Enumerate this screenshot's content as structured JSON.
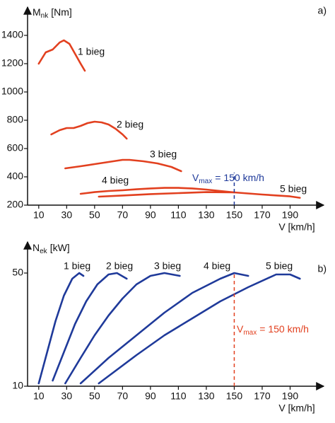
{
  "chart_data": [
    {
      "type": "line",
      "panel_label": "a)",
      "y_label_symbol": "M",
      "y_label_subscript": "nk",
      "y_label_unit": "[Nm]",
      "x_label": "V [km/h]",
      "xlim": [
        2,
        210
      ],
      "ylim": [
        200,
        1580
      ],
      "xticks": [
        10,
        30,
        50,
        70,
        90,
        110,
        130,
        150,
        170,
        190
      ],
      "yticks": [
        200,
        400,
        600,
        800,
        1000,
        1200,
        1400
      ],
      "series": [
        {
          "name": "1 bieg",
          "color": "#e2401f",
          "x": [
            10,
            15,
            20,
            25,
            28,
            32,
            36,
            40,
            43
          ],
          "values": [
            1200,
            1280,
            1300,
            1350,
            1365,
            1340,
            1270,
            1200,
            1150
          ]
        },
        {
          "name": "2 bieg",
          "color": "#e2401f",
          "x": [
            19,
            25,
            30,
            35,
            40,
            45,
            50,
            55,
            60,
            65,
            70,
            73
          ],
          "values": [
            700,
            730,
            745,
            745,
            760,
            780,
            790,
            785,
            770,
            740,
            700,
            670
          ]
        },
        {
          "name": "3 bieg",
          "color": "#e2401f",
          "x": [
            29,
            40,
            50,
            60,
            70,
            75,
            85,
            95,
            105,
            112
          ],
          "values": [
            460,
            475,
            490,
            505,
            520,
            520,
            510,
            495,
            470,
            440
          ]
        },
        {
          "name": "4 bieg",
          "color": "#e2401f",
          "x": [
            40,
            50,
            60,
            70,
            80,
            90,
            100,
            110,
            120,
            130,
            140,
            150
          ],
          "values": [
            280,
            292,
            300,
            305,
            312,
            318,
            322,
            322,
            318,
            310,
            300,
            290
          ]
        },
        {
          "name": "5 bieg",
          "color": "#e2401f",
          "x": [
            53,
            70,
            90,
            110,
            130,
            150,
            170,
            190,
            197
          ],
          "values": [
            260,
            268,
            278,
            285,
            292,
            290,
            275,
            262,
            252
          ]
        }
      ],
      "vmax": {
        "x": 150,
        "color": "#1f3a9a",
        "symbol": "V",
        "subscript": "max",
        "rest": "= 150 km/h"
      }
    },
    {
      "type": "line",
      "panel_label": "b)",
      "y_label_symbol": "N",
      "y_label_subscript": "ek",
      "y_label_unit": "[kW]",
      "x_label": "V [km/h]",
      "xlim": [
        2,
        210
      ],
      "ylim": [
        10,
        60
      ],
      "xticks": [
        10,
        30,
        50,
        70,
        90,
        110,
        130,
        150,
        170,
        190
      ],
      "yticks": [
        10,
        50
      ],
      "series": [
        {
          "name": "1 bieg",
          "color": "#1f3a9a",
          "x": [
            10,
            16,
            22,
            28,
            34,
            39,
            42
          ],
          "values": [
            11,
            22,
            33,
            42,
            48,
            50,
            49
          ]
        },
        {
          "name": "2 bieg",
          "color": "#1f3a9a",
          "x": [
            20,
            28,
            36,
            44,
            52,
            60,
            66,
            73
          ],
          "values": [
            12,
            22,
            32,
            40,
            46,
            49.5,
            50,
            48
          ]
        },
        {
          "name": "3 bieg",
          "color": "#1f3a9a",
          "x": [
            29,
            40,
            50,
            60,
            70,
            80,
            90,
            100,
            111
          ],
          "values": [
            11,
            20,
            28,
            35,
            41,
            46,
            49,
            50,
            49
          ]
        },
        {
          "name": "4 bieg",
          "color": "#1f3a9a",
          "x": [
            40,
            60,
            80,
            100,
            120,
            140,
            150,
            160
          ],
          "values": [
            11,
            20,
            28,
            36,
            43,
            48,
            50,
            49
          ]
        },
        {
          "name": "5 bieg",
          "color": "#1f3a9a",
          "x": [
            53,
            80,
            100,
            120,
            140,
            160,
            180,
            190,
            197
          ],
          "values": [
            11,
            21,
            28,
            34,
            40,
            45,
            49.5,
            49.5,
            48
          ]
        }
      ],
      "vmax": {
        "x": 150,
        "color": "#e2401f",
        "symbol": "V",
        "subscript": "max",
        "rest": "= 150 km/h"
      }
    }
  ]
}
